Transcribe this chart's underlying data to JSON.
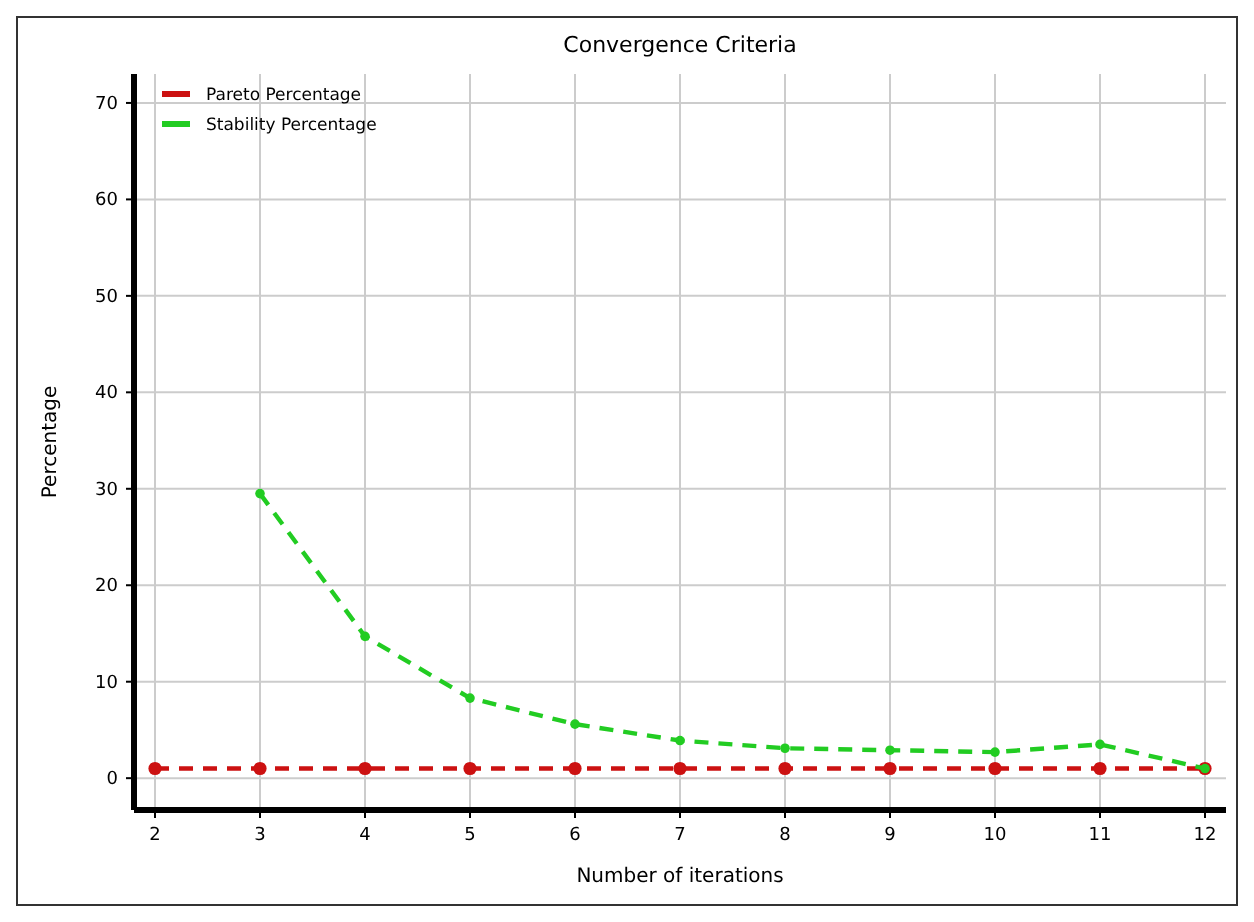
{
  "chart_data": {
    "type": "line",
    "title": "Convergence Criteria",
    "xlabel": "Number of iterations",
    "ylabel": "Percentage",
    "xlim": [
      1.8,
      12.2
    ],
    "xticks": [
      2,
      3,
      4,
      5,
      6,
      7,
      8,
      9,
      10,
      11,
      12
    ],
    "ylim": [
      -3.3,
      73
    ],
    "yticks": [
      0,
      10,
      20,
      30,
      40,
      50,
      60,
      70
    ],
    "grid": true,
    "legend": "top left",
    "marker": "circle",
    "line_style": "dashed",
    "series": [
      {
        "name": "Pareto Percentage",
        "color": "#cc1111",
        "x": [
          2,
          3,
          4,
          5,
          6,
          7,
          8,
          9,
          10,
          11,
          12
        ],
        "values": [
          1,
          1,
          1,
          1,
          1,
          1,
          1,
          1,
          1,
          1,
          1
        ]
      },
      {
        "name": "Stability Percentage",
        "color": "#22cc22",
        "x": [
          3,
          4,
          5,
          6,
          7,
          8,
          9,
          10,
          11,
          12
        ],
        "values": [
          29.5,
          14.7,
          8.3,
          5.6,
          3.9,
          3.1,
          2.9,
          2.7,
          3.5,
          1
        ]
      }
    ]
  }
}
